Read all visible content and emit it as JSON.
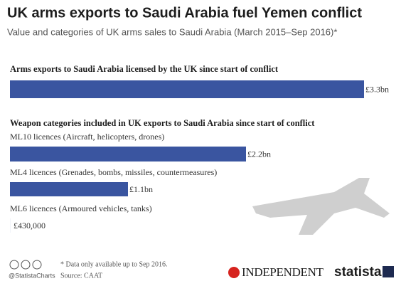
{
  "header": {
    "title": "UK arms exports to Saudi Arabia fuel Yemen conflict",
    "subtitle": "Value and categories of UK arms sales to Saudi Arabia (March 2015–Sep 2016)*"
  },
  "chart_data": [
    {
      "type": "bar",
      "title": "Arms exports to Saudi Arabia licensed by the UK since start of conflict",
      "categories": [
        null
      ],
      "values": [
        3300000000
      ],
      "value_labels": [
        "£3.3bn"
      ],
      "color": "#3a55a0"
    },
    {
      "type": "bar",
      "title": "Weapon categories included in UK exports to Saudi Arabia since start of conflict",
      "categories": [
        "ML10 licences (Aircraft, helicopters, drones)",
        "ML4 licences (Grenades, bombs, missiles, countermeasures)",
        "ML6 licences (Armoured vehicles, tanks)"
      ],
      "values": [
        2200000000,
        1100000000,
        430000
      ],
      "value_labels": [
        "£2.2bn",
        "£1.1bn",
        "£430,000"
      ],
      "color": "#3a55a0"
    }
  ],
  "footer": {
    "note": "* Data only available up to Sep 2016.",
    "source": "Source: CAAT",
    "handle": "@StatistaCharts",
    "publisher": "INDEPENDENT",
    "brand": "statista"
  }
}
